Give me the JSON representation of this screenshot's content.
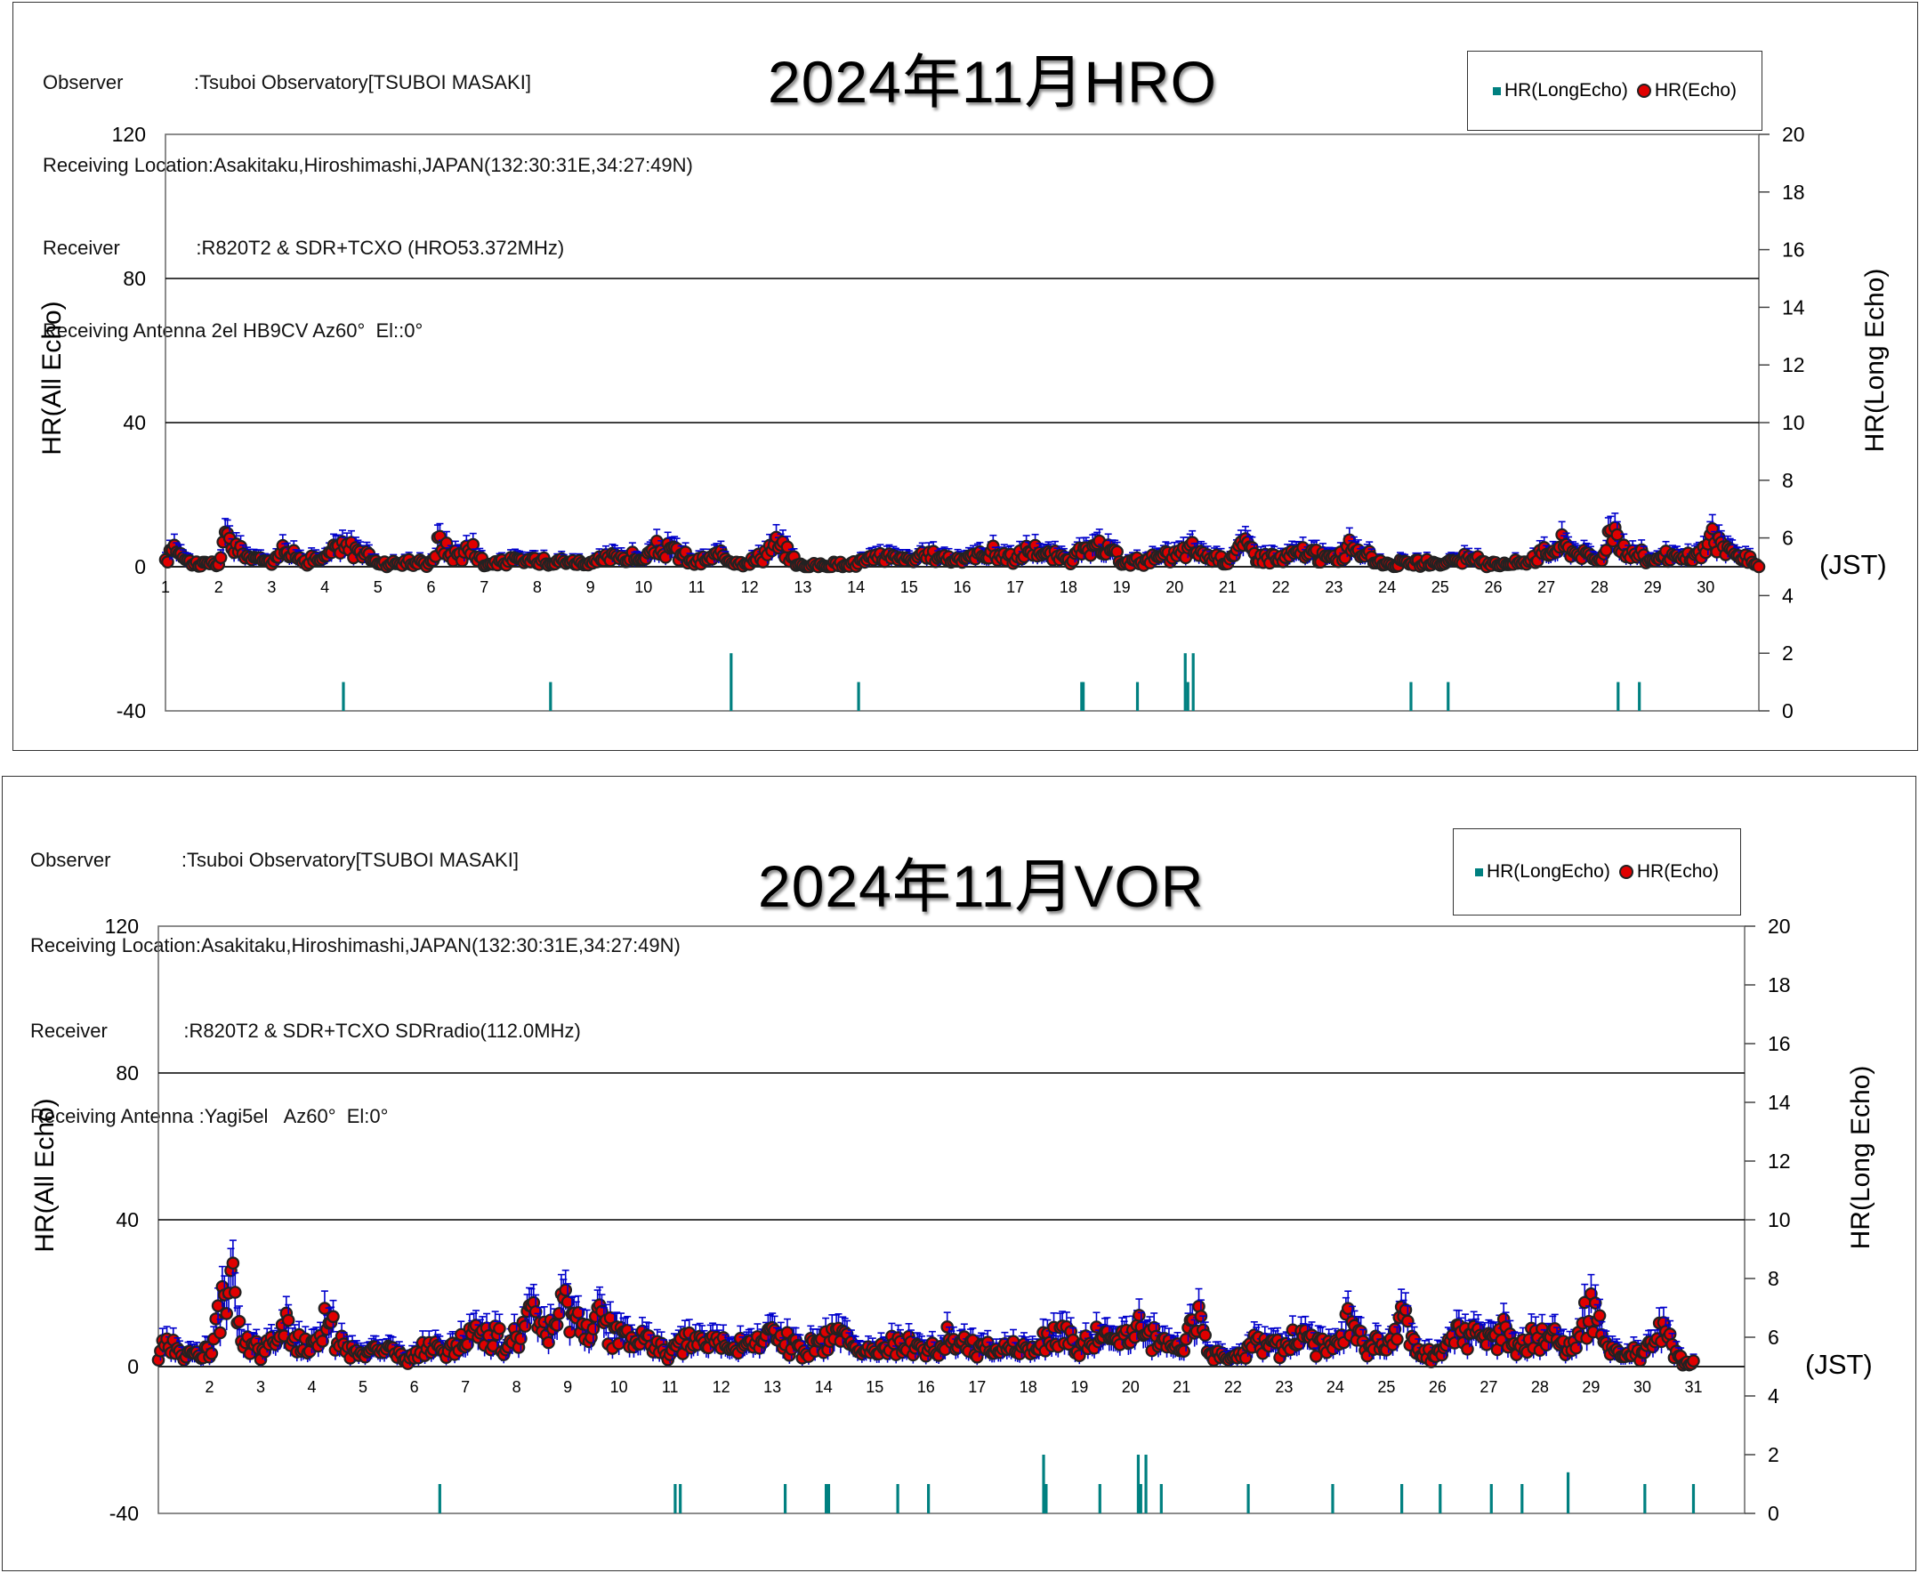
{
  "chart_data": [
    {
      "type": "scatter",
      "title": "2024年11月HRO",
      "info": [
        "Observer             :Tsuboi Observatory[TSUBOI MASAKI]",
        "Receiving Location:Asakitaku,Hiroshimashi,JAPAN(132:30:31E,34:27:49N)",
        "Receiver              :R820T2 & SDR+TCXO (HRO53.372MHz)",
        "Receiving Antenna 2el HB9CV Az60°  El::0°"
      ],
      "ylabel_left": "HR(All Echo)",
      "ylabel_right": "HR(Long Echo)",
      "xunit": "(JST)",
      "left_ticks": [
        "120",
        "80",
        "40",
        "0",
        "-40"
      ],
      "right_ticks": [
        "20",
        "18",
        "16",
        "14",
        "12",
        "10",
        "8",
        "6",
        "4",
        "2",
        "0"
      ],
      "x_labels": [
        "1",
        "2",
        "3",
        "4",
        "5",
        "6",
        "7",
        "8",
        "9",
        "10",
        "11",
        "12",
        "13",
        "14",
        "15",
        "16",
        "17",
        "18",
        "19",
        "20",
        "21",
        "22",
        "23",
        "24",
        "25",
        "26",
        "27",
        "28",
        "29",
        "30"
      ],
      "ylim_left": [
        -40,
        120
      ],
      "ylim_right": [
        0,
        20
      ],
      "xlim": [
        1,
        31
      ],
      "grid": "horizontal at 40, 80",
      "legend": {
        "position": "top-right",
        "entries": [
          "HR(LongEcho)",
          "HR(Echo)"
        ]
      },
      "colors": {
        "echo": "#e00000",
        "echo_edge": "#222222",
        "errbar": "#0000cc",
        "longecho": "#008080"
      },
      "series": [
        {
          "name": "HR(Echo)",
          "profile": [
            [
              1,
              1
            ],
            [
              1.15,
              6
            ],
            [
              1.5,
              1
            ],
            [
              2,
              1
            ],
            [
              2.15,
              8
            ],
            [
              2.5,
              3
            ],
            [
              3,
              1
            ],
            [
              3.15,
              6
            ],
            [
              3.5,
              2
            ],
            [
              4,
              2
            ],
            [
              4.2,
              5
            ],
            [
              4.6,
              5
            ],
            [
              5,
              1
            ],
            [
              5.5,
              1
            ],
            [
              6,
              1
            ],
            [
              6.15,
              7
            ],
            [
              6.4,
              3
            ],
            [
              6.8,
              5
            ],
            [
              7,
              1
            ],
            [
              8,
              2
            ],
            [
              9,
              1
            ],
            [
              9.5,
              3
            ],
            [
              10,
              2
            ],
            [
              10.3,
              5
            ],
            [
              10.6,
              4
            ],
            [
              11,
              1
            ],
            [
              11.4,
              3
            ],
            [
              12,
              1
            ],
            [
              12.5,
              6
            ],
            [
              13,
              0
            ],
            [
              14,
              1
            ],
            [
              14.5,
              3
            ],
            [
              15,
              2
            ],
            [
              15.5,
              3
            ],
            [
              16,
              2
            ],
            [
              16.5,
              4
            ],
            [
              17,
              2
            ],
            [
              17.3,
              5
            ],
            [
              17.6,
              3
            ],
            [
              18,
              2
            ],
            [
              18.3,
              4
            ],
            [
              18.8,
              5
            ],
            [
              19,
              1
            ],
            [
              19.5,
              2
            ],
            [
              20,
              3
            ],
            [
              20.3,
              5
            ],
            [
              20.6,
              3
            ],
            [
              21,
              2
            ],
            [
              21.3,
              6
            ],
            [
              21.6,
              3
            ],
            [
              22,
              2
            ],
            [
              22.4,
              4
            ],
            [
              23,
              2
            ],
            [
              23.4,
              6
            ],
            [
              23.7,
              2
            ],
            [
              24,
              1
            ],
            [
              24.5,
              1
            ],
            [
              25,
              1
            ],
            [
              25.5,
              2
            ],
            [
              26,
              1
            ],
            [
              26.5,
              1
            ],
            [
              27,
              4
            ],
            [
              27.3,
              6
            ],
            [
              27.6,
              4
            ],
            [
              28,
              2
            ],
            [
              28.25,
              11
            ],
            [
              28.5,
              4
            ],
            [
              29,
              2
            ],
            [
              29.3,
              3
            ],
            [
              29.6,
              2
            ],
            [
              30,
              4
            ],
            [
              30.1,
              9
            ],
            [
              30.4,
              4
            ],
            [
              30.8,
              2
            ],
            [
              31,
              0
            ]
          ]
        },
        {
          "name": "HR(LongEcho)",
          "x": [
            4.35,
            8.25,
            11.65,
            14.05,
            18.25,
            18.28,
            19.3,
            20.2,
            20.25,
            20.35,
            24.45,
            25.15,
            28.35,
            28.75
          ],
          "values": [
            1,
            1,
            2,
            1,
            1,
            1,
            1,
            2,
            1,
            2,
            1,
            1,
            1,
            1
          ]
        }
      ]
    },
    {
      "type": "scatter",
      "title": "2024年11月VOR",
      "info": [
        "Observer             :Tsuboi Observatory[TSUBOI MASAKI]",
        "Receiving Location:Asakitaku,Hiroshimashi,JAPAN(132:30:31E,34:27:49N)",
        "Receiver              :R820T2 & SDR+TCXO SDRradio(112.0MHz)",
        "Receiving Antenna :Yagi5el   Az60°  El:0°"
      ],
      "ylabel_left": "HR(All Echo)",
      "ylabel_right": "HR(Long Echo)",
      "xunit": "(JST)",
      "left_ticks": [
        "120",
        "80",
        "40",
        "0",
        "-40"
      ],
      "right_ticks": [
        "20",
        "18",
        "16",
        "14",
        "12",
        "10",
        "8",
        "6",
        "4",
        "2",
        "0"
      ],
      "x_labels": [
        "2",
        "3",
        "4",
        "5",
        "6",
        "7",
        "8",
        "9",
        "10",
        "11",
        "12",
        "13",
        "14",
        "15",
        "16",
        "17",
        "18",
        "19",
        "20",
        "21",
        "22",
        "23",
        "24",
        "25",
        "26",
        "27",
        "28",
        "29",
        "30",
        "31"
      ],
      "ylim_left": [
        -40,
        120
      ],
      "ylim_right": [
        0,
        20
      ],
      "xlim": [
        1,
        32
      ],
      "grid": "horizontal at 40, 80",
      "legend": {
        "position": "top-right",
        "entries": [
          "HR(LongEcho)",
          "HR(Echo)"
        ]
      },
      "colors": {
        "echo": "#e00000",
        "echo_edge": "#222222",
        "errbar": "#0000cc",
        "longecho": "#008080"
      },
      "series": [
        {
          "name": "HR(Echo)",
          "profile": [
            [
              1,
              3
            ],
            [
              1.2,
              8
            ],
            [
              1.5,
              3
            ],
            [
              2,
              4
            ],
            [
              2.4,
              24
            ],
            [
              2.6,
              8
            ],
            [
              3,
              4
            ],
            [
              3.5,
              10
            ],
            [
              3.8,
              6
            ],
            [
              4,
              5
            ],
            [
              4.3,
              13
            ],
            [
              4.6,
              5
            ],
            [
              5,
              3
            ],
            [
              5.4,
              6
            ],
            [
              5.8,
              2
            ],
            [
              6,
              2
            ],
            [
              6.3,
              8
            ],
            [
              6.6,
              3
            ],
            [
              7,
              7
            ],
            [
              7.3,
              9
            ],
            [
              7.7,
              7
            ],
            [
              8,
              7
            ],
            [
              8.3,
              13
            ],
            [
              8.7,
              8
            ],
            [
              9,
              17
            ],
            [
              9.3,
              8
            ],
            [
              9.5,
              13
            ],
            [
              10,
              9
            ],
            [
              10.3,
              6
            ],
            [
              10.6,
              8
            ],
            [
              11,
              3
            ],
            [
              11.3,
              7
            ],
            [
              12,
              6
            ],
            [
              12.5,
              6
            ],
            [
              13,
              8
            ],
            [
              13.5,
              5
            ],
            [
              14,
              6
            ],
            [
              14.3,
              9
            ],
            [
              14.6,
              4
            ],
            [
              15,
              4
            ],
            [
              15.5,
              7
            ],
            [
              16,
              4
            ],
            [
              16.4,
              8
            ],
            [
              16.8,
              6
            ],
            [
              17,
              4
            ],
            [
              17.4,
              6
            ],
            [
              18,
              4
            ],
            [
              18.3,
              7
            ],
            [
              18.7,
              8
            ],
            [
              19,
              5
            ],
            [
              19.3,
              8
            ],
            [
              19.7,
              6
            ],
            [
              20,
              10
            ],
            [
              20.3,
              10
            ],
            [
              20.6,
              6
            ],
            [
              21,
              5
            ],
            [
              21.3,
              12
            ],
            [
              21.6,
              4
            ],
            [
              22,
              2
            ],
            [
              22.4,
              7
            ],
            [
              23,
              4
            ],
            [
              23.3,
              11
            ],
            [
              23.6,
              6
            ],
            [
              24,
              5
            ],
            [
              24.3,
              12
            ],
            [
              24.6,
              4
            ],
            [
              25,
              7
            ],
            [
              25.3,
              13
            ],
            [
              25.6,
              4
            ],
            [
              26,
              3
            ],
            [
              26.3,
              9
            ],
            [
              26.6,
              8
            ],
            [
              27,
              6
            ],
            [
              27.3,
              9
            ],
            [
              27.6,
              5
            ],
            [
              28,
              8
            ],
            [
              28.3,
              8
            ],
            [
              28.6,
              5
            ],
            [
              29,
              17
            ],
            [
              29.3,
              5
            ],
            [
              29.6,
              4
            ],
            [
              30,
              3
            ],
            [
              30.3,
              10
            ],
            [
              30.6,
              6
            ],
            [
              30.8,
              1
            ],
            [
              31,
              1
            ]
          ]
        },
        {
          "name": "HR(LongEcho)",
          "x": [
            6.5,
            11.1,
            11.2,
            13.25,
            14.05,
            14.1,
            15.45,
            16.05,
            18.3,
            18.35,
            19.4,
            20.15,
            20.2,
            20.3,
            20.6,
            22.3,
            23.95,
            25.3,
            26.05,
            27.05,
            27.65,
            28.55,
            30.05,
            31.0
          ],
          "values": [
            1,
            1,
            1,
            1,
            1,
            1,
            1,
            1,
            2,
            1,
            1,
            2,
            1,
            2,
            1,
            1,
            1,
            1,
            1,
            1,
            1,
            1.4,
            1,
            1
          ]
        }
      ]
    }
  ]
}
